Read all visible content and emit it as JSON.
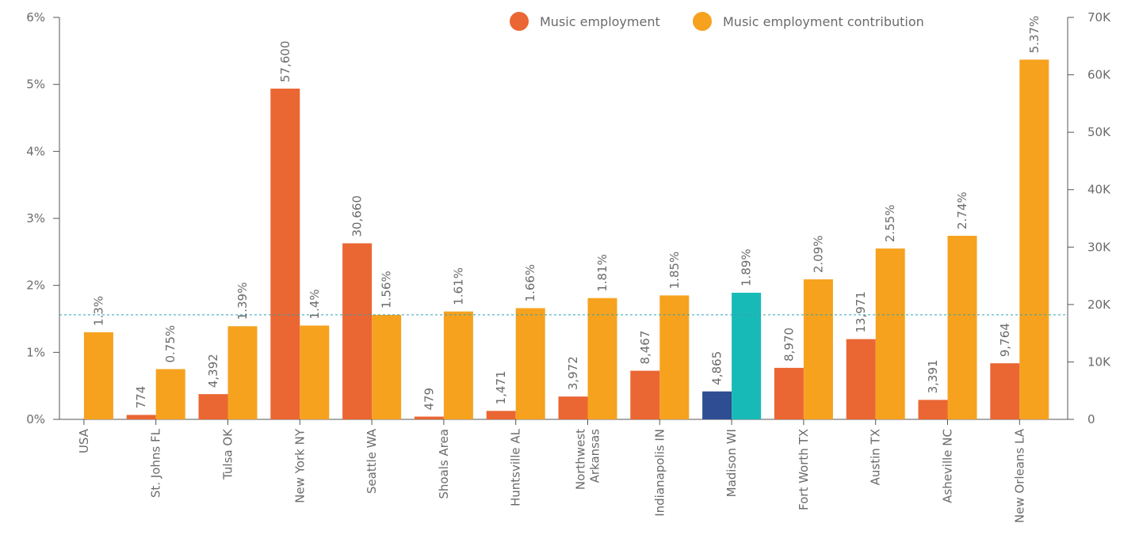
{
  "chart_data": {
    "type": "bar",
    "categories": [
      "USA",
      "St. Johns FL",
      "Tulsa OK",
      "New York NY",
      "Seattle WA",
      "Shoals Area",
      "Huntsville AL",
      "Northwest Arkansas",
      "Indianapolis IN",
      "Madison WI",
      "Fort Worth TX",
      "Austin TX",
      "Asheville NC",
      "New Orleans LA"
    ],
    "series": [
      {
        "name": "Music employment",
        "axis": "right",
        "values": [
          null,
          774,
          4392,
          57600,
          30660,
          479,
          1471,
          3972,
          8467,
          4865,
          8970,
          13971,
          3391,
          9764
        ],
        "labels": [
          "",
          "774",
          "4,392",
          "57,600",
          "30,660",
          "479",
          "1,471",
          "3,972",
          "8,467",
          "4,865",
          "8,970",
          "13,971",
          "3,391",
          "9,764"
        ]
      },
      {
        "name": "Music employment contribution",
        "axis": "left",
        "values": [
          1.3,
          0.75,
          1.39,
          1.4,
          1.56,
          1.61,
          1.66,
          1.81,
          1.85,
          1.89,
          2.09,
          2.55,
          2.74,
          5.37
        ],
        "labels": [
          "1.3%",
          "0.75%",
          "1.39%",
          "1.4%",
          "1.56%",
          "1.61%",
          "1.66%",
          "1.81%",
          "1.85%",
          "1.89%",
          "2.09%",
          "2.55%",
          "2.74%",
          "5.37%"
        ]
      }
    ],
    "y_left": {
      "range": [
        0,
        6
      ],
      "ticks": [
        0,
        1,
        2,
        3,
        4,
        5,
        6
      ],
      "tick_labels": [
        "0%",
        "1%",
        "2%",
        "3%",
        "4%",
        "5%",
        "6%"
      ]
    },
    "y_right": {
      "range": [
        0,
        70000
      ],
      "ticks": [
        0,
        10000,
        20000,
        30000,
        40000,
        50000,
        60000,
        70000
      ],
      "tick_labels": [
        "0",
        "10K",
        "20K",
        "30K",
        "40K",
        "50K",
        "60K",
        "70K"
      ]
    },
    "reference_line": {
      "axis": "left",
      "value": 1.56,
      "style": "dashed"
    },
    "highlight_category": "Madison WI",
    "legend_position": "top-right",
    "grid": false,
    "title": "",
    "xlabel": "",
    "ylabel": ""
  },
  "colors": {
    "employment": "#EA6633",
    "contribution": "#F6A21E",
    "highlight_employment": "#2E4D93",
    "highlight_contribution": "#17BAB7",
    "reference_line": "#2FA3B4",
    "axis": "#555555",
    "text": "#6B6B6B"
  }
}
